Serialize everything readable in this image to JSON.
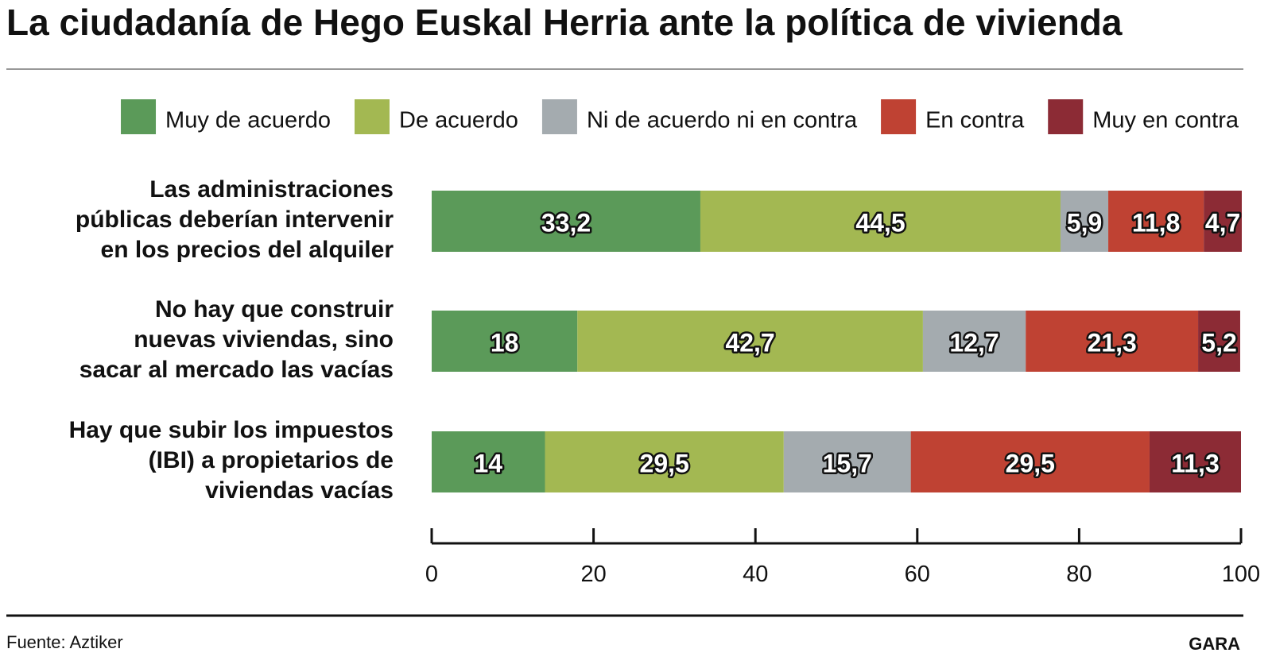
{
  "chart_data": {
    "type": "stacked-bar-horizontal",
    "title": "La ciudadanía de Hego Euskal Herria ante la política de vivienda",
    "source": "Fuente: Aztiker",
    "brand": "GARA",
    "categories": [
      "Las administraciones\npúblicas deberían intervenir\nen los precios del alquiler",
      "No hay que construir\nnuevas viviendas, sino\nsacar al mercado las vacías",
      "Hay que subir los impuestos\n(IBI) a propietarios de\nviviendas vacías"
    ],
    "series": [
      {
        "name": "Muy de acuerdo",
        "color": "#5b9a59",
        "values": [
          33.2,
          18,
          14
        ],
        "value_labels": [
          "33,2",
          "18",
          "14"
        ]
      },
      {
        "name": "De acuerdo",
        "color": "#a3b852",
        "values": [
          44.5,
          42.7,
          29.5
        ],
        "value_labels": [
          "44,5",
          "42,7",
          "29,5"
        ]
      },
      {
        "name": "Ni de acuerdo ni en contra",
        "color": "#a4abaf",
        "values": [
          5.9,
          12.7,
          15.7
        ],
        "value_labels": [
          "5,9",
          "12,7",
          "15,7"
        ]
      },
      {
        "name": "En contra",
        "color": "#bf4233",
        "values": [
          11.8,
          21.3,
          29.5
        ],
        "value_labels": [
          "11,8",
          "21,3",
          "29,5"
        ]
      },
      {
        "name": "Muy en contra",
        "color": "#8c2b35",
        "values": [
          4.7,
          5.2,
          11.3
        ],
        "value_labels": [
          "4,7",
          "5,2",
          "11,3"
        ]
      }
    ],
    "xlim": [
      0,
      100
    ],
    "xticks": [
      0,
      20,
      40,
      60,
      80,
      100
    ],
    "legend": "top-right"
  }
}
